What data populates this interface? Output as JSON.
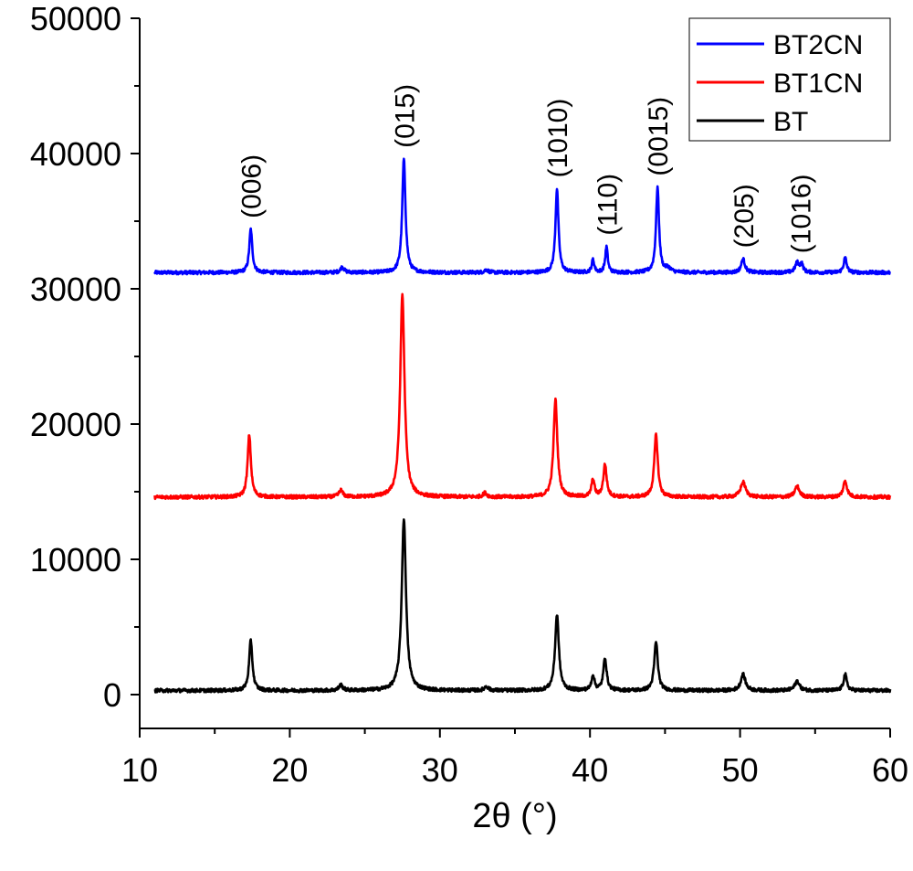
{
  "chart_data": {
    "type": "line",
    "title": "",
    "xlabel": "2θ (°)",
    "ylabel": "",
    "xlim": [
      10,
      60
    ],
    "ylim": [
      -2500,
      50000
    ],
    "x_ticks": [
      10,
      20,
      30,
      40,
      50,
      60
    ],
    "y_ticks": [
      0,
      10000,
      20000,
      30000,
      40000,
      50000
    ],
    "grid": false,
    "legend_position": "top-right",
    "series": [
      {
        "name": "BT2CN",
        "color": "#0000ff",
        "baseline": 31200,
        "peaks": [
          {
            "x": 17.4,
            "height": 3200,
            "width": 0.12
          },
          {
            "x": 23.5,
            "height": 400,
            "width": 0.15
          },
          {
            "x": 27.6,
            "height": 8400,
            "width": 0.13
          },
          {
            "x": 33.1,
            "height": 200,
            "width": 0.15
          },
          {
            "x": 37.8,
            "height": 6200,
            "width": 0.12
          },
          {
            "x": 40.2,
            "height": 950,
            "width": 0.1
          },
          {
            "x": 41.1,
            "height": 1900,
            "width": 0.1
          },
          {
            "x": 44.5,
            "height": 6300,
            "width": 0.12
          },
          {
            "x": 45.2,
            "height": 300,
            "width": 0.2
          },
          {
            "x": 50.2,
            "height": 1000,
            "width": 0.15
          },
          {
            "x": 53.8,
            "height": 700,
            "width": 0.15
          },
          {
            "x": 54.1,
            "height": 600,
            "width": 0.12
          },
          {
            "x": 57.0,
            "height": 1100,
            "width": 0.12
          }
        ]
      },
      {
        "name": "BT1CN",
        "color": "#ff0000",
        "baseline": 14600,
        "peaks": [
          {
            "x": 17.3,
            "height": 4600,
            "width": 0.13
          },
          {
            "x": 23.4,
            "height": 500,
            "width": 0.15
          },
          {
            "x": 27.5,
            "height": 15000,
            "width": 0.17
          },
          {
            "x": 33.0,
            "height": 300,
            "width": 0.15
          },
          {
            "x": 37.7,
            "height": 7200,
            "width": 0.15
          },
          {
            "x": 40.2,
            "height": 1300,
            "width": 0.12
          },
          {
            "x": 41.0,
            "height": 2400,
            "width": 0.13
          },
          {
            "x": 44.4,
            "height": 4600,
            "width": 0.14
          },
          {
            "x": 50.2,
            "height": 1100,
            "width": 0.2
          },
          {
            "x": 53.8,
            "height": 800,
            "width": 0.18
          },
          {
            "x": 57.0,
            "height": 1200,
            "width": 0.15
          }
        ]
      },
      {
        "name": "BT",
        "color": "#000000",
        "baseline": 300,
        "peaks": [
          {
            "x": 17.4,
            "height": 3700,
            "width": 0.13
          },
          {
            "x": 23.4,
            "height": 400,
            "width": 0.15
          },
          {
            "x": 27.6,
            "height": 12700,
            "width": 0.17
          },
          {
            "x": 33.1,
            "height": 300,
            "width": 0.15
          },
          {
            "x": 37.8,
            "height": 5600,
            "width": 0.15
          },
          {
            "x": 40.2,
            "height": 1100,
            "width": 0.12
          },
          {
            "x": 41.0,
            "height": 2400,
            "width": 0.13
          },
          {
            "x": 44.4,
            "height": 3600,
            "width": 0.14
          },
          {
            "x": 50.2,
            "height": 1200,
            "width": 0.18
          },
          {
            "x": 53.8,
            "height": 700,
            "width": 0.18
          },
          {
            "x": 57.0,
            "height": 1200,
            "width": 0.13
          }
        ]
      }
    ],
    "annotations": [
      {
        "text": "(006)",
        "x": 17.4
      },
      {
        "text": "(015)",
        "x": 27.6
      },
      {
        "text": "(1010)",
        "x": 37.8
      },
      {
        "text": "(110)",
        "x": 41.1
      },
      {
        "text": "(0015)",
        "x": 44.5
      },
      {
        "text": "(205)",
        "x": 50.2
      },
      {
        "text": "(1016)",
        "x": 54.0
      }
    ]
  }
}
